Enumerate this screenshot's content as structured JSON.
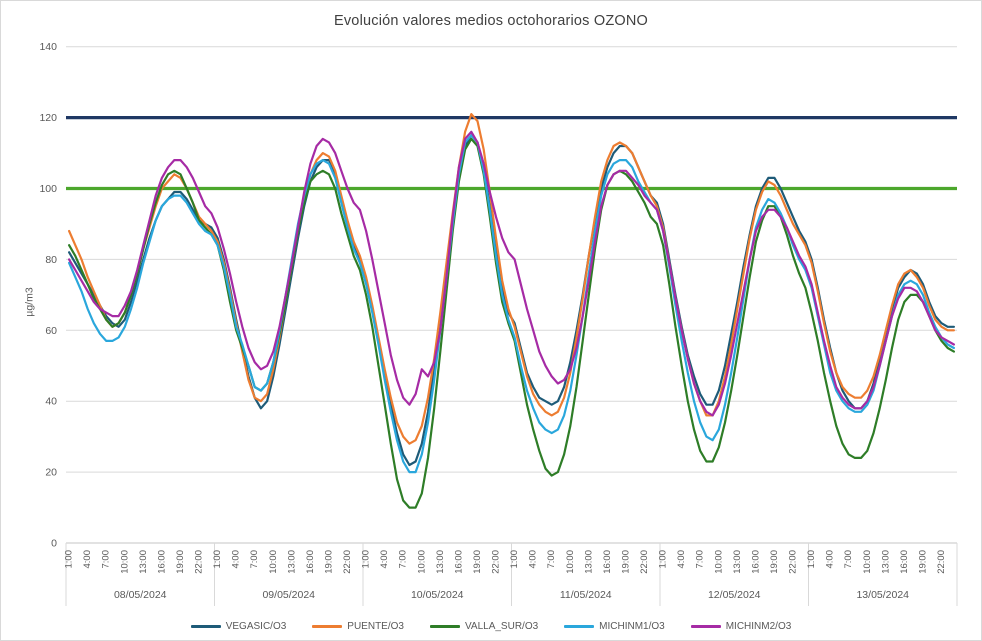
{
  "chart": {
    "title": "Evolución valores medios octohorarios OZONO",
    "y_axis_title": "µg/m3"
  },
  "colors": {
    "background": "#FFFFFF",
    "text": "#595959",
    "title_text": "#404040",
    "gridline": "#D9D9D9",
    "axis_line": "#C6C6C6"
  },
  "chart_data": {
    "type": "line",
    "title": "Evolución valores medios octohorarios OZONO",
    "xlabel": "",
    "ylabel": "µg/m3",
    "ylim": [
      0,
      140
    ],
    "y_ticks": [
      0,
      20,
      40,
      60,
      80,
      100,
      120,
      140
    ],
    "grid": "horizontal",
    "legend_position": "bottom",
    "days": [
      "08/05/2024",
      "09/05/2024",
      "10/05/2024",
      "11/05/2024",
      "12/05/2024",
      "13/05/2024"
    ],
    "hour_tick_labels": [
      "1:00",
      "4:00",
      "7:00",
      "10:00",
      "13:00",
      "16:00",
      "19:00",
      "22:00"
    ],
    "x_resolution": "hourly values 1:00-24:00 for each day (144 points per series)",
    "reference_lines": [
      {
        "name": "limit-120",
        "value": 120,
        "color": "#1F3864"
      },
      {
        "name": "limit-100",
        "value": 100,
        "color": "#4CA72C"
      }
    ],
    "series": [
      {
        "name": "VEGASIC/O3",
        "color": "#1E5B78",
        "values": [
          82,
          79,
          76,
          73,
          70,
          67,
          64,
          62,
          61,
          63,
          68,
          74,
          80,
          86,
          91,
          95,
          97,
          99,
          99,
          97,
          94,
          91,
          90,
          89,
          86,
          80,
          72,
          63,
          55,
          47,
          41,
          38,
          40,
          47,
          56,
          66,
          76,
          86,
          95,
          102,
          106,
          108,
          108,
          104,
          97,
          90,
          84,
          80,
          74,
          66,
          57,
          48,
          39,
          31,
          25,
          22,
          23,
          28,
          37,
          49,
          62,
          76,
          90,
          103,
          112,
          115,
          113,
          106,
          95,
          83,
          72,
          65,
          62,
          55,
          48,
          44,
          41,
          40,
          39,
          40,
          44,
          51,
          60,
          70,
          81,
          91,
          100,
          106,
          110,
          112,
          112,
          110,
          106,
          102,
          98,
          96,
          90,
          80,
          70,
          61,
          53,
          47,
          42,
          39,
          39,
          43,
          50,
          59,
          68,
          78,
          87,
          95,
          100,
          103,
          103,
          100,
          96,
          92,
          88,
          85,
          80,
          72,
          63,
          55,
          48,
          43,
          40,
          38,
          38,
          40,
          45,
          52,
          59,
          66,
          72,
          75,
          77,
          76,
          73,
          68,
          64,
          62,
          61,
          61
        ]
      },
      {
        "name": "PUENTE/O3",
        "color": "#ED7D31",
        "values": [
          88,
          84,
          80,
          75,
          71,
          67,
          63,
          61,
          62,
          65,
          70,
          76,
          83,
          89,
          95,
          100,
          102,
          104,
          103,
          100,
          96,
          92,
          90,
          88,
          85,
          79,
          71,
          62,
          54,
          46,
          41,
          40,
          42,
          49,
          58,
          68,
          78,
          88,
          97,
          104,
          108,
          110,
          109,
          105,
          98,
          91,
          85,
          81,
          75,
          67,
          58,
          49,
          41,
          34,
          30,
          28,
          29,
          33,
          41,
          52,
          65,
          79,
          93,
          106,
          116,
          121,
          119,
          111,
          99,
          86,
          74,
          66,
          61,
          54,
          47,
          42,
          39,
          37,
          36,
          37,
          41,
          48,
          58,
          69,
          81,
          92,
          102,
          108,
          112,
          113,
          112,
          110,
          106,
          102,
          98,
          95,
          89,
          79,
          69,
          60,
          52,
          45,
          40,
          36,
          36,
          40,
          47,
          56,
          66,
          76,
          86,
          94,
          99,
          102,
          101,
          98,
          94,
          90,
          87,
          84,
          79,
          71,
          62,
          54,
          48,
          44,
          42,
          41,
          41,
          43,
          47,
          53,
          60,
          67,
          73,
          76,
          77,
          75,
          72,
          67,
          63,
          61,
          60,
          60
        ]
      },
      {
        "name": "VALLA_SUR/O3",
        "color": "#2E7D27",
        "values": [
          84,
          81,
          77,
          73,
          69,
          66,
          63,
          61,
          62,
          65,
          70,
          76,
          83,
          90,
          96,
          101,
          104,
          105,
          104,
          100,
          96,
          91,
          89,
          87,
          84,
          77,
          68,
          60,
          55,
          50,
          44,
          43,
          45,
          51,
          59,
          68,
          78,
          88,
          96,
          102,
          104,
          105,
          104,
          100,
          93,
          87,
          81,
          77,
          70,
          61,
          50,
          39,
          28,
          18,
          12,
          10,
          10,
          14,
          24,
          38,
          54,
          71,
          88,
          102,
          111,
          114,
          112,
          104,
          92,
          79,
          68,
          62,
          57,
          48,
          39,
          32,
          26,
          21,
          19,
          20,
          25,
          33,
          44,
          57,
          70,
          83,
          94,
          101,
          104,
          105,
          104,
          102,
          99,
          96,
          92,
          90,
          84,
          73,
          61,
          50,
          40,
          32,
          26,
          23,
          23,
          27,
          34,
          43,
          53,
          64,
          75,
          85,
          91,
          95,
          95,
          92,
          87,
          81,
          76,
          72,
          65,
          57,
          48,
          40,
          33,
          28,
          25,
          24,
          24,
          26,
          31,
          38,
          46,
          55,
          63,
          68,
          70,
          70,
          68,
          64,
          60,
          57,
          55,
          54
        ]
      },
      {
        "name": "MICHINM1/O3",
        "color": "#2AA7DC",
        "values": [
          79,
          75,
          71,
          66,
          62,
          59,
          57,
          57,
          58,
          61,
          66,
          72,
          79,
          85,
          91,
          95,
          97,
          98,
          98,
          96,
          93,
          90,
          88,
          87,
          84,
          78,
          70,
          61,
          56,
          50,
          44,
          43,
          45,
          51,
          60,
          70,
          80,
          90,
          98,
          104,
          107,
          108,
          107,
          103,
          96,
          89,
          83,
          79,
          73,
          65,
          56,
          46,
          37,
          29,
          23,
          20,
          20,
          25,
          34,
          46,
          60,
          75,
          90,
          104,
          113,
          115,
          113,
          105,
          94,
          81,
          70,
          63,
          58,
          50,
          43,
          38,
          34,
          32,
          31,
          32,
          36,
          43,
          53,
          64,
          76,
          88,
          98,
          104,
          107,
          108,
          108,
          106,
          102,
          99,
          96,
          94,
          88,
          78,
          67,
          57,
          48,
          40,
          34,
          30,
          29,
          32,
          39,
          48,
          58,
          69,
          80,
          89,
          94,
          97,
          96,
          93,
          89,
          84,
          80,
          77,
          72,
          64,
          56,
          48,
          43,
          40,
          38,
          37,
          37,
          39,
          43,
          50,
          57,
          64,
          70,
          73,
          74,
          73,
          70,
          65,
          61,
          58,
          56,
          55
        ]
      },
      {
        "name": "MICHINM2/O3",
        "color": "#A62BA5",
        "values": [
          80,
          77,
          74,
          71,
          68,
          66,
          65,
          64,
          64,
          67,
          71,
          77,
          84,
          91,
          98,
          103,
          106,
          108,
          108,
          106,
          103,
          99,
          95,
          93,
          89,
          83,
          76,
          68,
          61,
          55,
          51,
          49,
          50,
          54,
          61,
          70,
          79,
          89,
          99,
          107,
          112,
          114,
          113,
          110,
          105,
          100,
          96,
          94,
          88,
          80,
          71,
          62,
          53,
          46,
          41,
          39,
          42,
          49,
          47,
          51,
          60,
          75,
          92,
          106,
          114,
          116,
          113,
          107,
          99,
          92,
          86,
          82,
          80,
          73,
          66,
          60,
          54,
          50,
          47,
          45,
          46,
          49,
          55,
          64,
          74,
          85,
          95,
          101,
          104,
          105,
          105,
          103,
          101,
          98,
          96,
          94,
          88,
          79,
          69,
          60,
          52,
          45,
          40,
          37,
          36,
          39,
          45,
          53,
          62,
          71,
          80,
          88,
          92,
          94,
          94,
          92,
          89,
          85,
          81,
          78,
          73,
          65,
          57,
          50,
          44,
          41,
          39,
          38,
          38,
          40,
          44,
          50,
          57,
          64,
          69,
          72,
          72,
          71,
          68,
          64,
          60,
          58,
          57,
          56
        ]
      }
    ]
  }
}
